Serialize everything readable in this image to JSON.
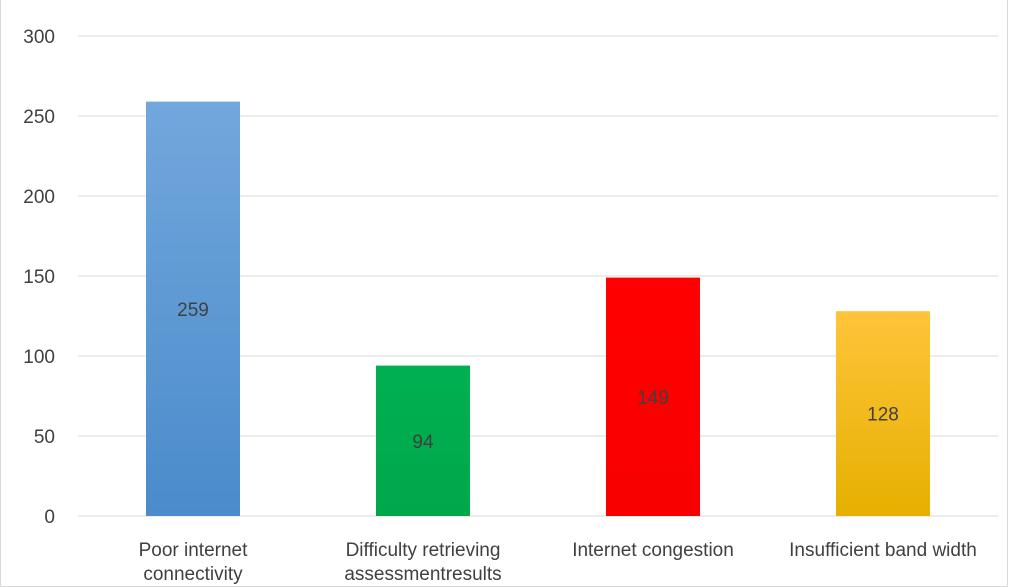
{
  "chart_data": {
    "type": "bar",
    "title": "",
    "categories": [
      [
        "Poor internet",
        "connectivity"
      ],
      [
        "Difficulty retrieving",
        "assessmentresults"
      ],
      [
        "Internet congestion"
      ],
      [
        "Insufficient band width"
      ]
    ],
    "values": [
      259,
      94,
      149,
      128
    ],
    "data_labels": [
      "259",
      "94",
      "149",
      "128"
    ],
    "colors": [
      "#5b9bd5",
      "#00b050",
      "#ff0000",
      "#ffc000"
    ],
    "ylim": [
      0,
      300
    ],
    "yticks": [
      "0",
      "50",
      "100",
      "150",
      "200",
      "250",
      "300"
    ],
    "grid": true,
    "legend": "none"
  }
}
